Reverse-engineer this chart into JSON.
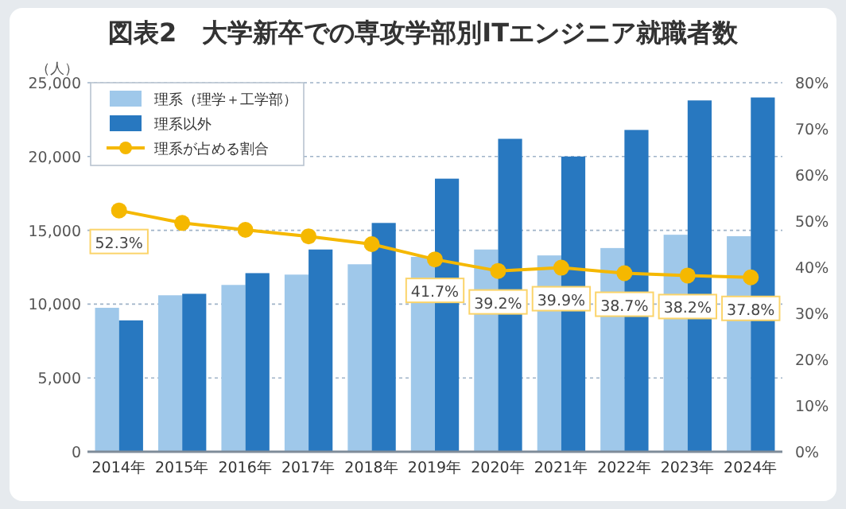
{
  "chart_data": {
    "type": "bar",
    "title": "図表2　大学新卒での専攻学部別ITエンジニア就職者数",
    "ylabel": "（人）",
    "categories": [
      "2014年",
      "2015年",
      "2016年",
      "2017年",
      "2018年",
      "2019年",
      "2020年",
      "2021年",
      "2022年",
      "2023年",
      "2024年"
    ],
    "series": [
      {
        "name": "理系（理学＋工学部）",
        "color": "#9fc8ea",
        "values": [
          9750,
          10600,
          11300,
          12000,
          12700,
          13200,
          13700,
          13300,
          13800,
          14700,
          14600
        ]
      },
      {
        "name": "理系以外",
        "color": "#2878c0",
        "values": [
          8900,
          10700,
          12100,
          13700,
          15500,
          18500,
          21200,
          20000,
          21800,
          23800,
          24000
        ]
      },
      {
        "name": "理系が占める割合",
        "type": "line",
        "axis": "y2",
        "color": "#f5b800",
        "values": [
          52.3,
          49.6,
          48.1,
          46.7,
          45.0,
          41.7,
          39.2,
          39.9,
          38.7,
          38.2,
          37.8
        ],
        "value_labels": [
          "52.3%",
          null,
          null,
          null,
          null,
          "41.7%",
          "39.2%",
          "39.9%",
          "38.7%",
          "38.2%",
          "37.8%"
        ]
      }
    ],
    "ylim": [
      0,
      25000
    ],
    "yticks": [
      {
        "value": 0,
        "label": "0"
      },
      {
        "value": 5000,
        "label": "5,000"
      },
      {
        "value": 10000,
        "label": "10,000"
      },
      {
        "value": 15000,
        "label": "15,000"
      },
      {
        "value": 20000,
        "label": "20,000"
      },
      {
        "value": 25000,
        "label": "25,000"
      }
    ],
    "y2lim": [
      0,
      80
    ],
    "y2ticks": [
      {
        "value": 0,
        "label": "0%"
      },
      {
        "value": 10,
        "label": "10%"
      },
      {
        "value": 20,
        "label": "20%"
      },
      {
        "value": 30,
        "label": "30%"
      },
      {
        "value": 40,
        "label": "40%"
      },
      {
        "value": 50,
        "label": "50%"
      },
      {
        "value": 60,
        "label": "60%"
      },
      {
        "value": 70,
        "label": "70%"
      },
      {
        "value": 80,
        "label": "80%"
      }
    ],
    "grid": "y",
    "legend": "top left",
    "marker": "circle"
  }
}
